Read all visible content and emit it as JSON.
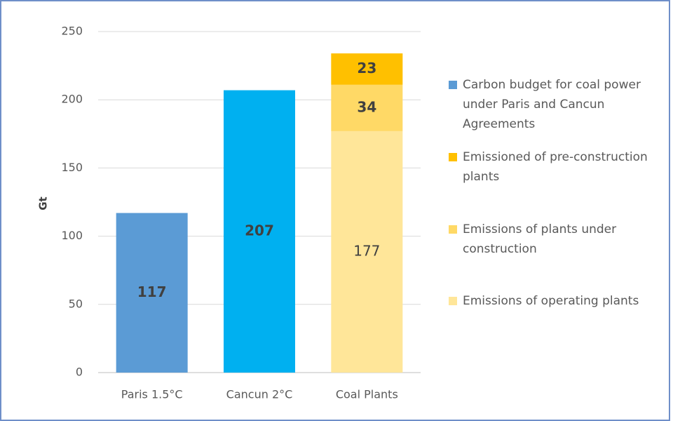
{
  "chart_data": {
    "type": "stacked_bar",
    "y_label": "Gt",
    "categories": [
      "Paris 1.5°C",
      "Cancun 2°C",
      "Coal Plants"
    ],
    "series": [
      {
        "name": "Carbon budget for coal power under Paris and Cancun Agreements",
        "color": "#5b9bd5",
        "colors": [
          "#5b9bd5",
          "#00b0f0",
          "#5b9bd5"
        ],
        "values": [
          117,
          207,
          null
        ]
      },
      {
        "name": "Emissioned of pre-construction plants",
        "color": "#ffc000",
        "values": [
          null,
          null,
          23
        ]
      },
      {
        "name": "Emissions of plants under construction",
        "color": "#ffd966",
        "values": [
          null,
          null,
          34
        ]
      },
      {
        "name": "Emissions of operating plants",
        "color": "#ffe699",
        "values": [
          null,
          null,
          177
        ]
      }
    ],
    "ylim": [
      0,
      250
    ],
    "yticks": [
      0,
      50,
      100,
      150,
      200,
      250
    ],
    "grid": true,
    "legend": "right"
  }
}
